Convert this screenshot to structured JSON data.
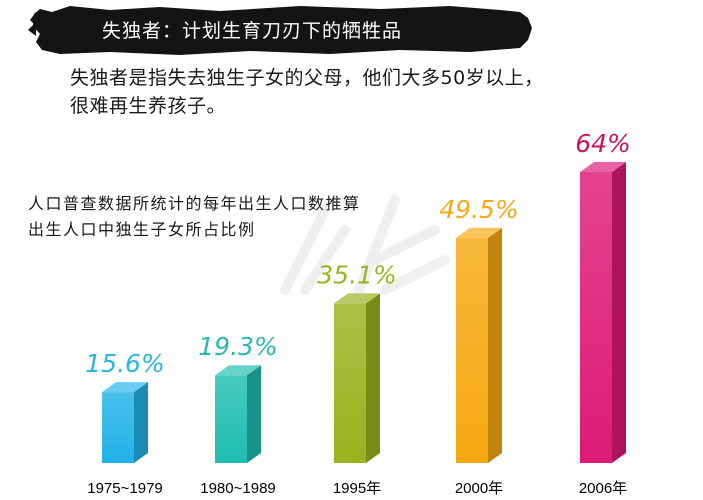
{
  "header": {
    "title": "失独者：计划生育刀刃下的牺牲品"
  },
  "intro": {
    "line1": "失独者是指失去独生子女的父母，他们大多50岁以上，",
    "line2": "很难再生养孩子。"
  },
  "subtitle": {
    "line1": "人口普查数据所统计的每年出生人口数推算",
    "line2": "出生人口中独生子女所占比例"
  },
  "chart_data": {
    "type": "bar",
    "categories": [
      "1975~1979",
      "1980~1989",
      "1995年",
      "2000年",
      "2006年"
    ],
    "values": [
      15.6,
      19.3,
      35.1,
      49.5,
      64
    ],
    "value_labels": [
      "15.6%",
      "19.3%",
      "35.1%",
      "49.5%",
      "64%"
    ],
    "colors": [
      "#21b2e8",
      "#1fbdb0",
      "#9ab21d",
      "#f6a810",
      "#de1a77"
    ],
    "label_colors": [
      "#28b5e0",
      "#2bb7b0",
      "#9ab521",
      "#f3aa15",
      "#c8155f"
    ],
    "ylim": [
      0,
      64
    ],
    "grid": false,
    "legend": "none"
  }
}
